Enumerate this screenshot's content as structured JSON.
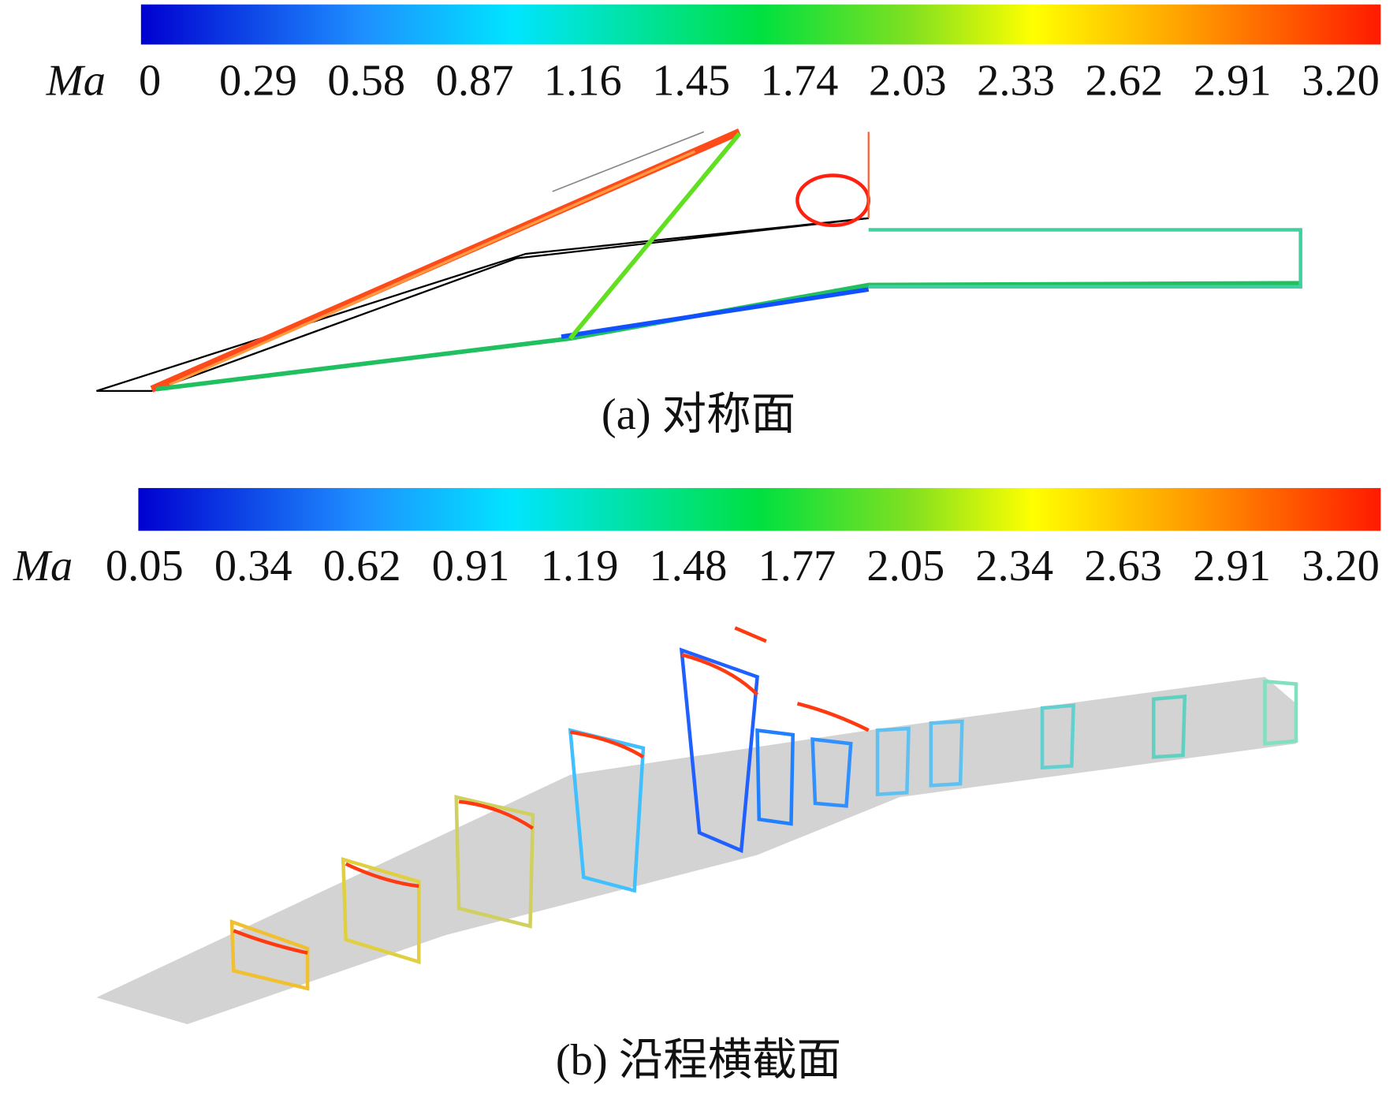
{
  "panels": [
    {
      "variable": "Ma",
      "ticks": [
        "0",
        "0.29",
        "0.58",
        "0.87",
        "1.16",
        "1.45",
        "1.74",
        "2.03",
        "2.33",
        "2.62",
        "2.91",
        "3.20"
      ],
      "caption": "(a) 对称面"
    },
    {
      "variable": "Ma",
      "ticks": [
        "0.05",
        "0.34",
        "0.62",
        "0.91",
        "1.19",
        "1.48",
        "1.77",
        "2.05",
        "2.34",
        "2.63",
        "2.91",
        "3.20"
      ],
      "caption": "(b) 沿程横截面"
    }
  ]
}
